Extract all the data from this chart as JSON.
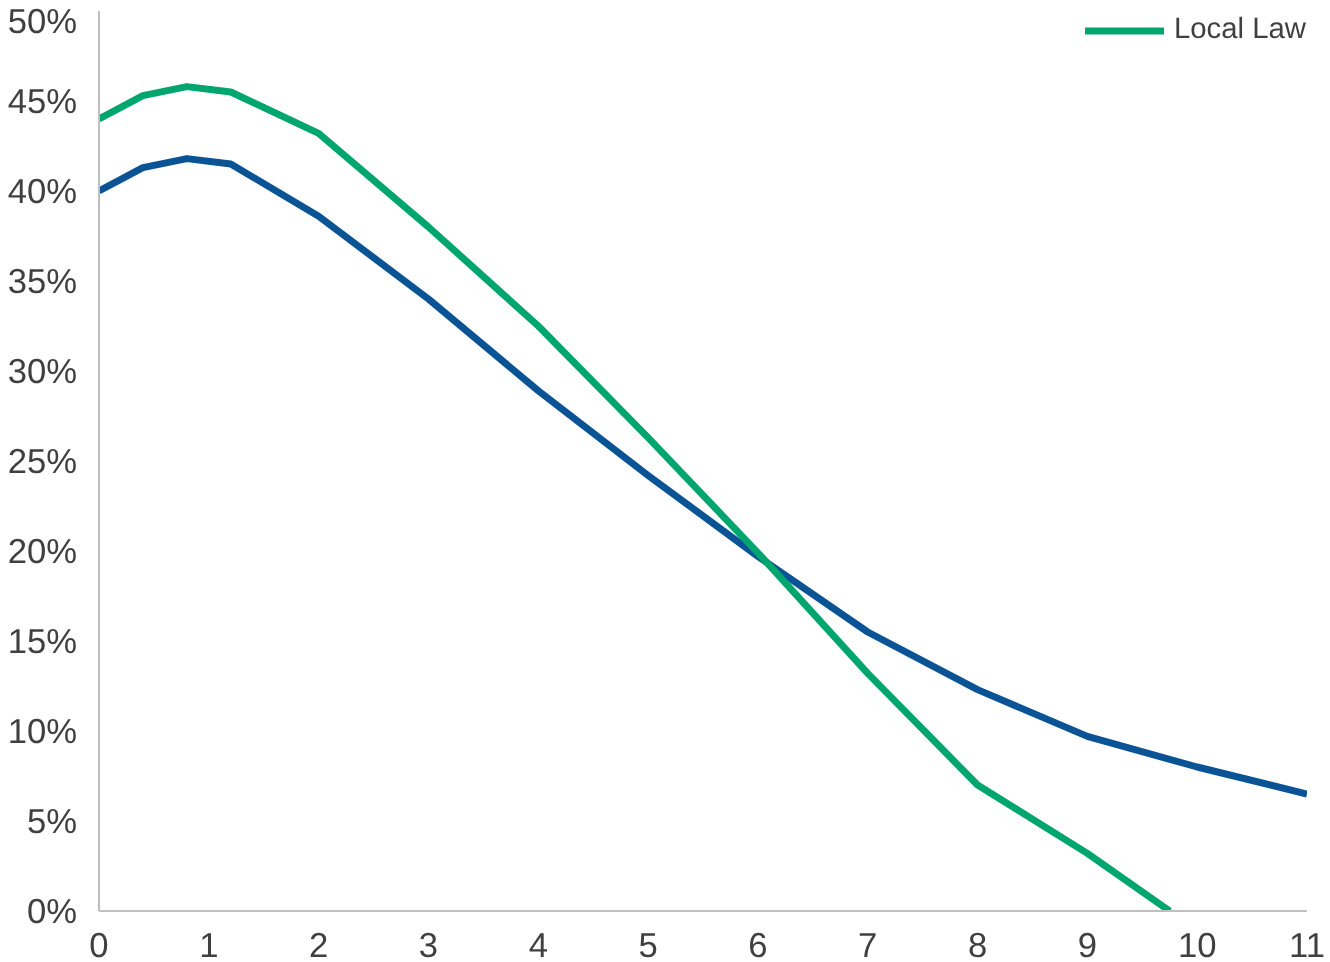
{
  "chart_data": {
    "type": "line",
    "x": [
      0,
      0.4,
      0.8,
      1.2,
      2,
      3,
      4,
      5,
      6,
      7,
      8,
      9,
      10,
      11
    ],
    "series": [
      {
        "color": "#0a5394",
        "values": [
          40,
          41.3,
          41.8,
          41.5,
          38.6,
          34,
          28.9,
          24.2,
          19.7,
          15.5,
          12.3,
          9.7,
          8,
          6.5
        ]
      },
      {
        "name": "Local Law",
        "color": "#00a66e",
        "x": [
          0,
          0.4,
          0.8,
          1.2,
          2,
          3,
          4,
          5,
          6,
          7,
          8,
          9,
          9.75
        ],
        "values": [
          44,
          45.3,
          45.8,
          45.5,
          43.2,
          38,
          32.5,
          26.3,
          19.9,
          13.2,
          7,
          3.2,
          0
        ]
      }
    ],
    "xlim": [
      0,
      11
    ],
    "ylim": [
      0,
      50
    ],
    "xticks": [
      0,
      1,
      2,
      3,
      4,
      5,
      6,
      7,
      8,
      9,
      10,
      11
    ],
    "yticks": [
      {
        "value": 0,
        "label": "0%"
      },
      {
        "value": 5,
        "label": "5%"
      },
      {
        "value": 10,
        "label": "10%"
      },
      {
        "value": 15,
        "label": "15%"
      },
      {
        "value": 20,
        "label": "20%"
      },
      {
        "value": 25,
        "label": "25%"
      },
      {
        "value": 30,
        "label": "30%"
      },
      {
        "value": 35,
        "label": "35%"
      },
      {
        "value": 40,
        "label": "40%"
      },
      {
        "value": 45,
        "label": "45%"
      },
      {
        "value": 50,
        "label": "50%"
      }
    ],
    "grid": false,
    "legend": "top right",
    "line_style": "solid"
  }
}
